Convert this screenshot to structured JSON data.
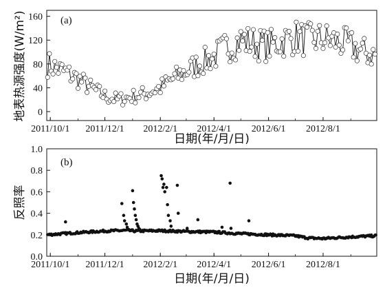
{
  "chart_data": [
    {
      "type": "line",
      "panel_label": "(a)",
      "ylabel": "地表热源强度(W/m²)",
      "xlabel": "日期(年/月/日)",
      "x_ticks": [
        "2011/10/1",
        "2011/12/1",
        "2012/2/1",
        "2012/4/1",
        "2012/6/1",
        "2012/8/1"
      ],
      "y_ticks": [
        "0",
        "40",
        "80",
        "120",
        "160"
      ],
      "xlim": [
        "2011/9/27",
        "2012/9/30"
      ],
      "ylim": [
        -15,
        170
      ],
      "marker": "open-circle",
      "series": [
        {
          "x": [
            "2011/9/28",
            "2011/10/15",
            "2011/11/1",
            "2011/11/15",
            "2011/12/1",
            "2011/12/15",
            "2012/1/1",
            "2012/1/15",
            "2012/2/1",
            "2012/2/15",
            "2012/3/1",
            "2012/3/15",
            "2012/4/1",
            "2012/4/15",
            "2012/5/1",
            "2012/5/15",
            "2012/6/1",
            "2012/6/15",
            "2012/7/1",
            "2012/7/15",
            "2012/8/1",
            "2012/8/15",
            "2012/9/1",
            "2012/9/15",
            "2012/9/29"
          ],
          "values": [
            80,
            68,
            55,
            40,
            26,
            20,
            25,
            30,
            40,
            55,
            68,
            80,
            92,
            108,
            120,
            115,
            110,
            118,
            125,
            120,
            122,
            118,
            110,
            100,
            95
          ]
        }
      ]
    },
    {
      "type": "scatter",
      "panel_label": "(b)",
      "ylabel": "反照率",
      "xlabel": "日期(年/月/日)",
      "x_ticks": [
        "2011/10/1",
        "2011/12/1",
        "2012/2/1",
        "2012/4/1",
        "2012/6/1",
        "2012/8/1"
      ],
      "y_ticks": [
        "0.0",
        "0.2",
        "0.4",
        "0.6",
        "0.8",
        "1.0"
      ],
      "xlim": [
        "2011/9/27",
        "2012/9/30"
      ],
      "ylim": [
        0.0,
        1.0
      ],
      "marker": "filled-circle",
      "series": [
        {
          "baseline_x": [
            "2011/9/28",
            "2011/11/1",
            "2011/12/1",
            "2011/12/25",
            "2012/1/5",
            "2012/2/1",
            "2012/3/1",
            "2012/4/1",
            "2012/5/1",
            "2012/6/1",
            "2012/7/1",
            "2012/7/15",
            "2012/8/1",
            "2012/9/1",
            "2012/9/29"
          ],
          "baseline_values": [
            0.2,
            0.22,
            0.235,
            0.24,
            0.235,
            0.238,
            0.23,
            0.225,
            0.21,
            0.2,
            0.19,
            0.17,
            0.165,
            0.18,
            0.19
          ],
          "outlier_x": [
            "2011/10/18",
            "2011/12/20",
            "2011/12/22",
            "2011/12/23",
            "2011/12/25",
            "2011/12/26",
            "2011/12/27",
            "2011/12/29",
            "2012/1/1",
            "2012/1/2",
            "2012/1/3",
            "2012/1/4",
            "2012/1/5",
            "2012/1/6",
            "2012/1/7",
            "2012/1/8",
            "2012/1/9",
            "2012/2/2",
            "2012/2/3",
            "2012/2/4",
            "2012/2/5",
            "2012/2/6",
            "2012/2/8",
            "2012/2/9",
            "2012/2/10",
            "2012/2/12",
            "2012/2/13",
            "2012/2/20",
            "2012/2/21",
            "2012/3/2",
            "2012/3/14",
            "2012/4/10",
            "2012/4/19",
            "2012/4/20",
            "2012/5/10"
          ],
          "outlier_values": [
            0.32,
            0.49,
            0.38,
            0.33,
            0.3,
            0.27,
            0.25,
            0.24,
            0.61,
            0.5,
            0.44,
            0.38,
            0.34,
            0.3,
            0.28,
            0.26,
            0.25,
            0.75,
            0.72,
            0.64,
            0.67,
            0.6,
            0.64,
            0.48,
            0.38,
            0.33,
            0.28,
            0.66,
            0.4,
            0.26,
            0.34,
            0.27,
            0.68,
            0.26,
            0.33
          ]
        }
      ]
    }
  ]
}
